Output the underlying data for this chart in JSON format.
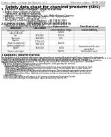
{
  "bg_color": "#ffffff",
  "header_top_left": "Product name: Lithium Ion Battery Cell",
  "header_top_right": "Reference number: MPCMS-00018\nEstablishment / Revision: Dec.7.2016",
  "title": "Safety data sheet for chemical products (SDS)",
  "section1_title": "1. PRODUCT AND COMPANY IDENTIFICATION",
  "section1_lines": [
    "  • Product name: Lithium Ion Battery Cell",
    "  • Product code: Cylindrical-type cell",
    "       (AF-B6550, (AF-B6500, (AF-B6504",
    "  • Company name:    Benzo Energy Co., Ltd., Mobile Energy Company",
    "  • Address:           2021, Kamiitsurun, Sumoto-City, Hyogo, Japan",
    "  • Telephone number:   +81-(799)-26-4111",
    "  • Fax number:  +81-1-799-26-4129",
    "  • Emergency telephone number (daytime): +81-799-26-2062",
    "                                     (Night and Holiday): +81-799-26-4101"
  ],
  "section2_title": "2 COMPOSITIONS / INFORMATION ON INGREDIENTS",
  "section2_sub": "  • Substance or preparation: Preparation",
  "section2_sub2": "    • Information about the chemical nature of product:",
  "table_headers": [
    "Component",
    "CAS number",
    "Concentration /\nConcentration range",
    "Classification and\nhazard labeling"
  ],
  "table_col2": "Common name /\nGeneric name",
  "table_rows": [
    [
      "Lithium cobalt oxide\n(LiMn/Co/Ni/O4)",
      "-",
      "30-50%",
      ""
    ],
    [
      "Iron",
      "7439-89-6",
      "10-25%",
      "-"
    ],
    [
      "Aluminum",
      "7429-90-5",
      "2-5%",
      "-"
    ],
    [
      "Graphite\n(Flake or graphite-1)\n(Artificial graphite-1)",
      "77782-42-5\n7782-44-2",
      "10-25%",
      "-"
    ],
    [
      "Copper",
      "7440-50-8",
      "5-15%",
      "Sensitization of the skin\ngroup No.2"
    ],
    [
      "Organic electrolyte",
      "-",
      "10-20%",
      "Inflammable liquid"
    ]
  ],
  "section3_title": "3 HAZARDS IDENTIFICATION",
  "section3_body": "For the battery cell, chemical substances are stored in a hermetically sealed metal case, designed to withstand\ntemperature changes and pressure-generating conditions during normal use. As a result, during normal use, there is no\nphysical danger of ignition or explosion and there is no danger of hazardous materials leakage.\n   However, if subjected to a fire, added mechanical shocks, decomposed, wired electro without any measures,\nthe gas release cannot be operated. The battery cell case will be breached at fire-portions, hazardous\nmaterials may be released.\n   Moreover, if heated strongly by the surrounding fire, solid gas may be emitted.",
  "section3_hazard_title": "  • Most important hazard and effects:",
  "section3_human": "    Human health effects:",
  "section3_human_lines": [
    "        Inhalation: The release of the electrolyte has an anesthesia action and stimulates in respiratory tract.",
    "        Skin contact: The release of the electrolyte stimulates a skin. The electrolyte skin contact causes a",
    "        sore and stimulation on the skin.",
    "        Eye contact: The release of the electrolyte stimulates eyes. The electrolyte eye contact causes a sore",
    "        and stimulation on the eye. Especially, a substance that causes a strong inflammation of the eye is",
    "        contained.",
    "        Environmental effects: Since a battery cell remains in the environment, do not throw out it into the",
    "        environment."
  ],
  "section3_specific": "  • Specific hazards:",
  "section3_specific_lines": [
    "    If the electrolyte contacts with water, it will generate detrimental hydrogen fluoride.",
    "    Since the used electrolyte is inflammable liquid, do not bring close to fire."
  ],
  "text_color": "#000000",
  "line_color": "#000000",
  "table_bg": "#f0f0f0"
}
